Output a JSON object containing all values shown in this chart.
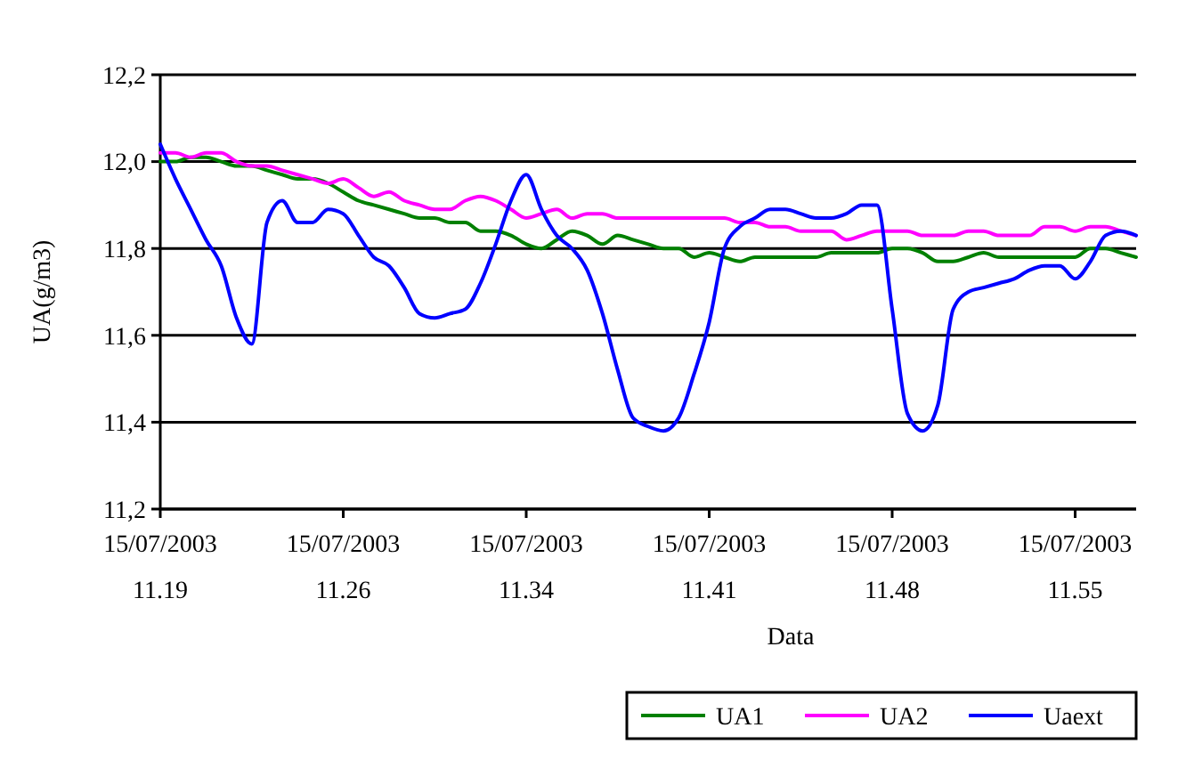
{
  "chart_data": {
    "type": "line",
    "xlabel": "Data",
    "ylabel": "UA(g/m3)",
    "categories": [
      "15/07/2003 11.19",
      null,
      null,
      null,
      null,
      null,
      null,
      null,
      null,
      null,
      null,
      null,
      "15/07/2003 11.26",
      null,
      null,
      null,
      null,
      null,
      null,
      null,
      null,
      null,
      null,
      null,
      "15/07/2003 11.34",
      null,
      null,
      null,
      null,
      null,
      null,
      null,
      null,
      null,
      null,
      null,
      "15/07/2003 11.41",
      null,
      null,
      null,
      null,
      null,
      null,
      null,
      null,
      null,
      null,
      null,
      "15/07/2003 11.48",
      null,
      null,
      null,
      null,
      null,
      null,
      null,
      null,
      null,
      null,
      null,
      "15/07/2003 11.55",
      null,
      null,
      null,
      null
    ],
    "series": [
      {
        "name": "UA1",
        "color": "#008000",
        "values": [
          12.0,
          12.0,
          12.01,
          12.01,
          12.0,
          11.99,
          11.99,
          11.98,
          11.97,
          11.96,
          11.96,
          11.95,
          11.93,
          11.91,
          11.9,
          11.89,
          11.88,
          11.87,
          11.87,
          11.86,
          11.86,
          11.84,
          11.84,
          11.83,
          11.81,
          11.8,
          11.82,
          11.84,
          11.83,
          11.81,
          11.83,
          11.82,
          11.81,
          11.8,
          11.8,
          11.78,
          11.79,
          11.78,
          11.77,
          11.78,
          11.78,
          11.78,
          11.78,
          11.78,
          11.79,
          11.79,
          11.79,
          11.79,
          11.8,
          11.8,
          11.79,
          11.77,
          11.77,
          11.78,
          11.79,
          11.78,
          11.78,
          11.78,
          11.78,
          11.78,
          11.78,
          11.8,
          11.8,
          11.79,
          11.78
        ]
      },
      {
        "name": "UA2",
        "color": "#ff00ff",
        "values": [
          12.02,
          12.02,
          12.01,
          12.02,
          12.02,
          12.0,
          11.99,
          11.99,
          11.98,
          11.97,
          11.96,
          11.95,
          11.96,
          11.94,
          11.92,
          11.93,
          11.91,
          11.9,
          11.89,
          11.89,
          11.91,
          11.92,
          11.91,
          11.89,
          11.87,
          11.88,
          11.89,
          11.87,
          11.88,
          11.88,
          11.87,
          11.87,
          11.87,
          11.87,
          11.87,
          11.87,
          11.87,
          11.87,
          11.86,
          11.86,
          11.85,
          11.85,
          11.84,
          11.84,
          11.84,
          11.82,
          11.83,
          11.84,
          11.84,
          11.84,
          11.83,
          11.83,
          11.83,
          11.84,
          11.84,
          11.83,
          11.83,
          11.83,
          11.85,
          11.85,
          11.84,
          11.85,
          11.85,
          11.84,
          11.83
        ]
      },
      {
        "name": "Uaext",
        "color": "#0000ff",
        "values": [
          12.04,
          11.96,
          11.89,
          11.82,
          11.76,
          11.64,
          11.58,
          11.86,
          11.91,
          11.86,
          11.86,
          11.89,
          11.88,
          11.83,
          11.78,
          11.76,
          11.71,
          11.65,
          11.64,
          11.65,
          11.66,
          11.72,
          11.81,
          11.91,
          11.97,
          11.89,
          11.83,
          11.8,
          11.75,
          11.65,
          11.52,
          11.41,
          11.39,
          11.38,
          11.41,
          11.51,
          11.63,
          11.8,
          11.85,
          11.87,
          11.89,
          11.89,
          11.88,
          11.87,
          11.87,
          11.88,
          11.9,
          11.9,
          11.66,
          11.42,
          11.38,
          11.44,
          11.66,
          11.7,
          11.71,
          11.72,
          11.73,
          11.75,
          11.76,
          11.76,
          11.73,
          11.77,
          11.83,
          11.84,
          11.83
        ]
      }
    ],
    "ylim": [
      11.2,
      12.2
    ],
    "yticks": [
      {
        "value": 11.2,
        "label": "11,2"
      },
      {
        "value": 11.4,
        "label": "11,4"
      },
      {
        "value": 11.6,
        "label": "11,6"
      },
      {
        "value": 11.8,
        "label": "11,8"
      },
      {
        "value": 12.0,
        "label": "12,0"
      },
      {
        "value": 12.2,
        "label": "12,2"
      }
    ],
    "grid": "y",
    "legend": "bottom right",
    "marker": "none",
    "line_style": "solid"
  }
}
